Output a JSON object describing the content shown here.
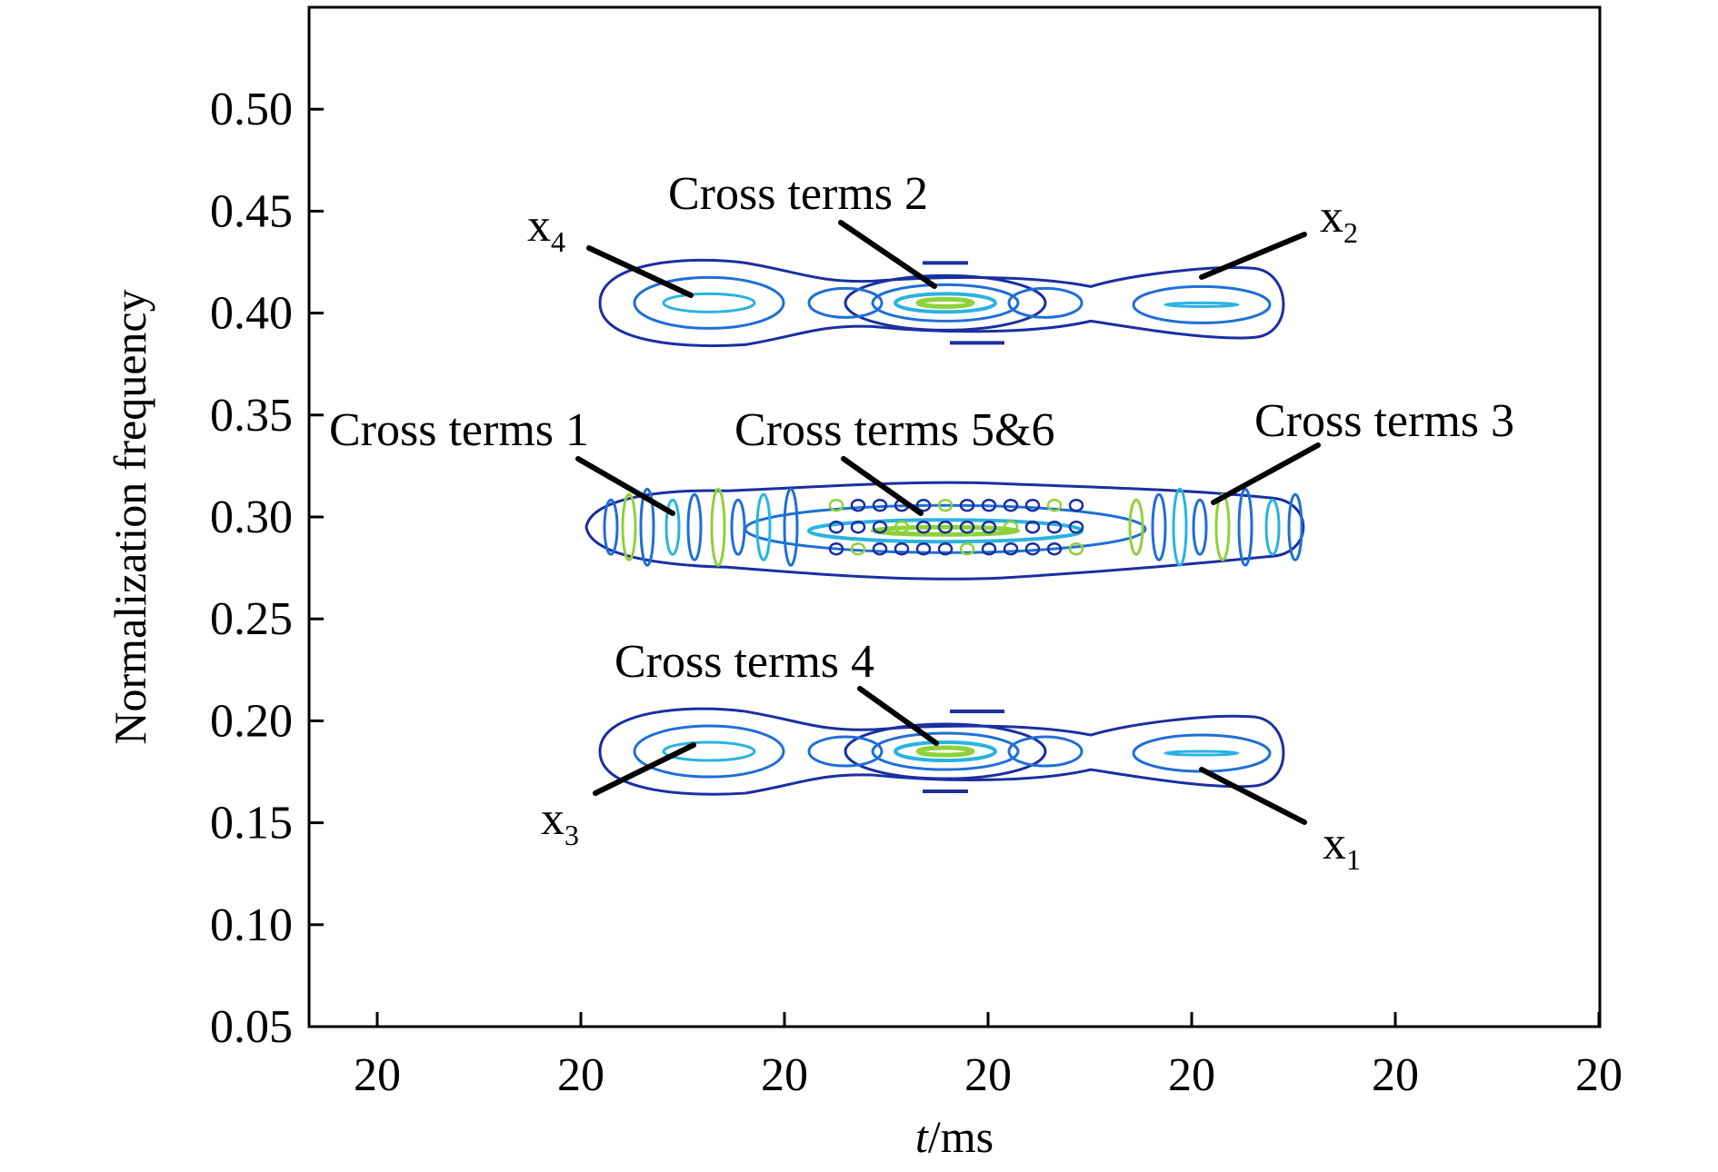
{
  "chart_data": {
    "type": "contour",
    "xlabel_italic": "t",
    "xlabel_rest": "/ms",
    "ylabel": "Normalization frequency",
    "ylim": [
      0.05,
      0.55
    ],
    "yticks": [
      "0.05",
      "0.10",
      "0.15",
      "0.20",
      "0.25",
      "0.30",
      "0.35",
      "0.40",
      "0.45",
      "0.50"
    ],
    "xticks": [
      "20",
      "20",
      "20",
      "20",
      "20",
      "20",
      "20"
    ],
    "grid": false,
    "bands": [
      {
        "name": "upper",
        "frequency": 0.405
      },
      {
        "name": "middle",
        "frequency": 0.295
      },
      {
        "name": "lower",
        "frequency": 0.185
      }
    ],
    "colors": {
      "outer": "#1a2fa0",
      "mid": "#1f6fd6",
      "inner": "#2ab3e0",
      "core": "#8fd13a"
    },
    "annotations": [
      {
        "id": "x4",
        "base": "x",
        "sub": "4"
      },
      {
        "id": "x2",
        "base": "x",
        "sub": "2"
      },
      {
        "id": "x3",
        "base": "x",
        "sub": "3"
      },
      {
        "id": "x1",
        "base": "x",
        "sub": "1"
      },
      {
        "id": "ct1",
        "text": "Cross terms 1"
      },
      {
        "id": "ct2",
        "text": "Cross terms 2"
      },
      {
        "id": "ct3",
        "text": "Cross terms 3"
      },
      {
        "id": "ct4",
        "text": "Cross terms 4"
      },
      {
        "id": "ct56",
        "text": "Cross terms 5&6"
      }
    ]
  }
}
